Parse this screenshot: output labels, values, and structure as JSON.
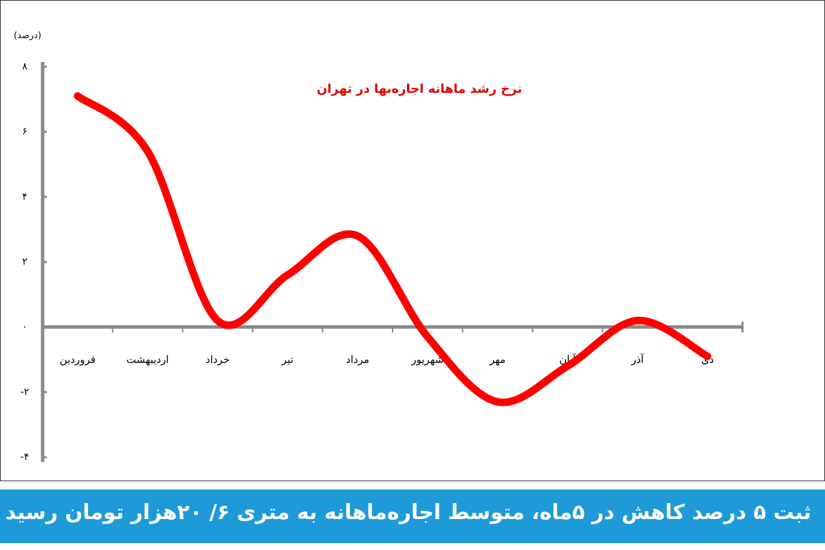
{
  "chart_data": {
    "type": "line",
    "title": "نرخ رشد ماهانه اجاره‌بها در تهران",
    "y_label": "(درصد)",
    "categories": [
      "فروردین",
      "اردیبهشت",
      "خرداد",
      "تیر",
      "مرداد",
      "شهریور",
      "مهر",
      "آبان",
      "آذر",
      "دی"
    ],
    "values": [
      7.1,
      5.4,
      0.2,
      1.6,
      2.8,
      -0.3,
      -2.3,
      -1.2,
      0.2,
      -0.9
    ],
    "color": "#ff0000",
    "ylim": [
      -4,
      8
    ],
    "yticks": [
      {
        "value": -4,
        "label": "-۴"
      },
      {
        "value": -2,
        "label": "-۲"
      },
      {
        "value": 0,
        "label": "۰"
      },
      {
        "value": 2,
        "label": "۲"
      },
      {
        "value": 4,
        "label": "۴"
      },
      {
        "value": 6,
        "label": "۶"
      },
      {
        "value": 8,
        "label": "۸"
      }
    ],
    "grid": false
  },
  "banner": {
    "headline": "ثبت ۵ درصد کاهش در ۵ماه، متوسط اجاره‌ماهانه به متری ۶/ ۲۰هزار تومان رسید"
  }
}
